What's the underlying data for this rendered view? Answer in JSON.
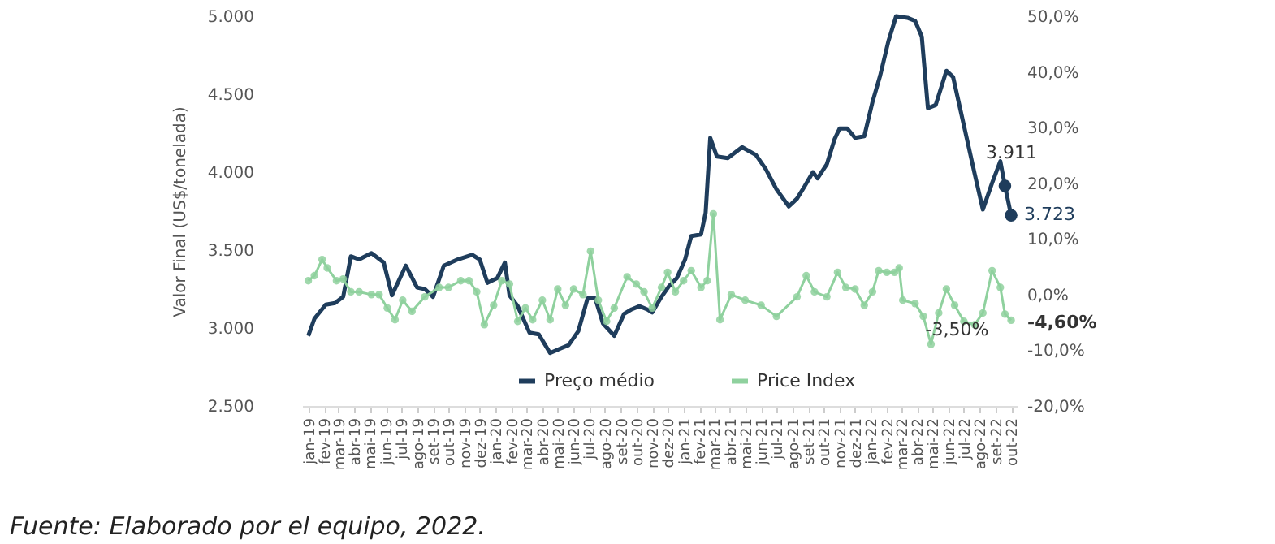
{
  "chart_data": {
    "type": "line",
    "ylabel": "Valor Final (US$/tonelada)",
    "xlim": [
      "2018-12-20",
      "2022-10-12"
    ],
    "xticks": [
      {
        "value": "2019-01",
        "label": "jan-19"
      },
      {
        "value": "2019-02",
        "label": "fev-19"
      },
      {
        "value": "2019-03",
        "label": "mar-19"
      },
      {
        "value": "2019-04",
        "label": "abr-19"
      },
      {
        "value": "2019-05",
        "label": "mai-19"
      },
      {
        "value": "2019-06",
        "label": "jun-19"
      },
      {
        "value": "2019-07",
        "label": "jul-19"
      },
      {
        "value": "2019-08",
        "label": "ago-19"
      },
      {
        "value": "2019-09",
        "label": "set-19"
      },
      {
        "value": "2019-10",
        "label": "out-19"
      },
      {
        "value": "2019-11",
        "label": "nov-19"
      },
      {
        "value": "2019-12",
        "label": "dez-19"
      },
      {
        "value": "2020-01",
        "label": "jan-20"
      },
      {
        "value": "2020-02",
        "label": "fev-20"
      },
      {
        "value": "2020-03",
        "label": "mar-20"
      },
      {
        "value": "2020-04",
        "label": "abr-20"
      },
      {
        "value": "2020-05",
        "label": "mai-20"
      },
      {
        "value": "2020-06",
        "label": "jun-20"
      },
      {
        "value": "2020-07",
        "label": "jul-20"
      },
      {
        "value": "2020-08",
        "label": "ago-20"
      },
      {
        "value": "2020-09",
        "label": "set-20"
      },
      {
        "value": "2020-10",
        "label": "out-20"
      },
      {
        "value": "2020-11",
        "label": "nov-20"
      },
      {
        "value": "2020-12",
        "label": "dez-20"
      },
      {
        "value": "2021-01",
        "label": "jan-21"
      },
      {
        "value": "2021-02",
        "label": "fev-21"
      },
      {
        "value": "2021-03",
        "label": "mar-21"
      },
      {
        "value": "2021-04",
        "label": "abr-21"
      },
      {
        "value": "2021-05",
        "label": "mai-21"
      },
      {
        "value": "2021-06",
        "label": "jun-21"
      },
      {
        "value": "2021-07",
        "label": "jul-21"
      },
      {
        "value": "2021-08",
        "label": "ago-21"
      },
      {
        "value": "2021-09",
        "label": "set-21"
      },
      {
        "value": "2021-10",
        "label": "out-21"
      },
      {
        "value": "2021-11",
        "label": "nov-21"
      },
      {
        "value": "2021-12",
        "label": "dez-21"
      },
      {
        "value": "2022-01",
        "label": "jan-22"
      },
      {
        "value": "2022-02",
        "label": "fev-22"
      },
      {
        "value": "2022-03",
        "label": "mar-22"
      },
      {
        "value": "2022-04",
        "label": "abr-22"
      },
      {
        "value": "2022-05",
        "label": "mai-22"
      },
      {
        "value": "2022-06",
        "label": "jun-22"
      },
      {
        "value": "2022-07",
        "label": "jul-22"
      },
      {
        "value": "2022-08",
        "label": "ago-22"
      },
      {
        "value": "2022-09",
        "label": "set-22"
      },
      {
        "value": "2022-10",
        "label": "out-22"
      }
    ],
    "ylim": [
      2500,
      5000
    ],
    "yticks": [
      {
        "value": 2500,
        "label": "2.500"
      },
      {
        "value": 3000,
        "label": "3.000"
      },
      {
        "value": 3500,
        "label": "3.500"
      },
      {
        "value": 4000,
        "label": "4.000"
      },
      {
        "value": 4500,
        "label": "4.500"
      },
      {
        "value": 5000,
        "label": "5.000"
      }
    ],
    "y2lim": [
      -20,
      50
    ],
    "y2ticks": [
      {
        "value": -20,
        "label": "-20,0%"
      },
      {
        "value": -10,
        "label": "-10,0%"
      },
      {
        "value": 0,
        "label": "0,0%"
      },
      {
        "value": 10,
        "label": "10,0%"
      },
      {
        "value": 20,
        "label": "20,0%"
      },
      {
        "value": 30,
        "label": "30,0%"
      },
      {
        "value": 40,
        "label": "40,0%"
      },
      {
        "value": 50,
        "label": "50,0%"
      }
    ],
    "grid": false,
    "legend": "bottom",
    "line_style": "solid",
    "series": [
      {
        "name": "Preço médio",
        "color": "#1f3d5c",
        "marker": "none",
        "x": [
          "2019-01-01",
          "2019-01-13",
          "2019-02-04",
          "2019-02-22",
          "2019-03-10",
          "2019-03-25",
          "2019-04-10",
          "2019-05-04",
          "2019-05-28",
          "2019-06-13",
          "2019-07-10",
          "2019-08-01",
          "2019-08-16",
          "2019-09-01",
          "2019-09-22",
          "2019-10-19",
          "2019-11-16",
          "2019-12-01",
          "2019-12-16",
          "2020-01-04",
          "2020-01-19",
          "2020-01-28",
          "2020-02-13",
          "2020-03-07",
          "2020-03-25",
          "2020-04-16",
          "2020-05-07",
          "2020-05-22",
          "2020-06-10",
          "2020-06-28",
          "2020-07-13",
          "2020-07-28",
          "2020-08-19",
          "2020-09-07",
          "2020-09-22",
          "2020-10-07",
          "2020-10-22",
          "2020-11-01",
          "2020-11-19",
          "2020-12-04",
          "2020-12-19",
          "2021-01-04",
          "2021-01-16",
          "2021-02-04",
          "2021-02-13",
          "2021-02-22",
          "2021-03-07",
          "2021-03-28",
          "2021-04-25",
          "2021-05-22",
          "2021-06-10",
          "2021-07-01",
          "2021-07-25",
          "2021-08-10",
          "2021-08-25",
          "2021-09-10",
          "2021-09-19",
          "2021-10-07",
          "2021-10-22",
          "2021-11-01",
          "2021-11-16",
          "2021-12-01",
          "2021-12-19",
          "2022-01-04",
          "2022-01-19",
          "2022-02-04",
          "2022-02-19",
          "2022-03-13",
          "2022-03-28",
          "2022-04-10",
          "2022-04-22",
          "2022-05-07",
          "2022-05-28",
          "2022-06-10",
          "2022-07-01",
          "2022-07-22",
          "2022-08-07",
          "2022-08-25",
          "2022-09-10",
          "2022-09-19",
          "2022-10-01"
        ],
        "values": [
          2950,
          3060,
          3150,
          3160,
          3200,
          3460,
          3440,
          3480,
          3420,
          3210,
          3400,
          3260,
          3250,
          3200,
          3400,
          3440,
          3470,
          3440,
          3290,
          3320,
          3420,
          3210,
          3140,
          2970,
          2960,
          2840,
          2870,
          2890,
          2980,
          3190,
          3190,
          3030,
          2950,
          3090,
          3120,
          3140,
          3120,
          3100,
          3200,
          3270,
          3320,
          3440,
          3590,
          3600,
          3740,
          4220,
          4100,
          4090,
          4160,
          4110,
          4020,
          3890,
          3780,
          3830,
          3910,
          4000,
          3960,
          4050,
          4210,
          4280,
          4280,
          4220,
          4230,
          4450,
          4620,
          4840,
          5000,
          4990,
          4970,
          4870,
          4410,
          4430,
          4650,
          4610,
          4300,
          3990,
          3760,
          3930,
          4070,
          3911,
          3723
        ],
        "value_labels": [
          null,
          null,
          null,
          null,
          null,
          null,
          null,
          null,
          null,
          null,
          null,
          null,
          null,
          null,
          null,
          null,
          null,
          null,
          null,
          null,
          null,
          null,
          null,
          null,
          null,
          null,
          null,
          null,
          null,
          null,
          null,
          null,
          null,
          null,
          null,
          null,
          null,
          null,
          null,
          null,
          null,
          null,
          null,
          null,
          null,
          null,
          null,
          null,
          null,
          null,
          null,
          null,
          null,
          null,
          null,
          null,
          null,
          null,
          null,
          null,
          null,
          null,
          null,
          null,
          null,
          null,
          null,
          null,
          null,
          null,
          null,
          null,
          null,
          null,
          null,
          null,
          null,
          null,
          null,
          "3.911",
          "3.723"
        ]
      },
      {
        "name": "Price Index",
        "color": "#8fd19e",
        "marker": "circle",
        "axis": "y2",
        "x": [
          "2019-01-01",
          "2019-01-13",
          "2019-01-28",
          "2019-02-07",
          "2019-02-25",
          "2019-03-10",
          "2019-03-25",
          "2019-04-10",
          "2019-05-04",
          "2019-05-19",
          "2019-06-04",
          "2019-06-19",
          "2019-07-04",
          "2019-07-22",
          "2019-08-16",
          "2019-09-13",
          "2019-10-01",
          "2019-10-25",
          "2019-11-10",
          "2019-11-25",
          "2019-12-10",
          "2019-12-28",
          "2020-01-13",
          "2020-01-28",
          "2020-02-13",
          "2020-02-28",
          "2020-03-13",
          "2020-04-01",
          "2020-04-16",
          "2020-05-01",
          "2020-05-16",
          "2020-06-01",
          "2020-06-19",
          "2020-07-04",
          "2020-07-19",
          "2020-08-04",
          "2020-08-19",
          "2020-09-13",
          "2020-10-01",
          "2020-10-16",
          "2020-11-01",
          "2020-11-19",
          "2020-12-01",
          "2020-12-16",
          "2021-01-01",
          "2021-01-16",
          "2021-02-04",
          "2021-02-16",
          "2021-02-28",
          "2021-03-13",
          "2021-04-04",
          "2021-05-01",
          "2021-06-01",
          "2021-07-01",
          "2021-08-10",
          "2021-08-28",
          "2021-09-13",
          "2021-10-07",
          "2021-10-28",
          "2021-11-13",
          "2021-12-01",
          "2021-12-19",
          "2022-01-04",
          "2022-01-16",
          "2022-02-01",
          "2022-02-16",
          "2022-02-25",
          "2022-03-04",
          "2022-03-28",
          "2022-04-13",
          "2022-04-28",
          "2022-05-13",
          "2022-05-28",
          "2022-06-13",
          "2022-07-01",
          "2022-07-22",
          "2022-08-07",
          "2022-08-25",
          "2022-09-10",
          "2022-09-19",
          "2022-10-01"
        ],
        "values": [
          2.5,
          3.4,
          6.3,
          4.8,
          2.5,
          2.8,
          0.5,
          0.5,
          0,
          0,
          -2.4,
          -4.5,
          -1,
          -3,
          -0.4,
          1.3,
          1.3,
          2.5,
          2.5,
          0.5,
          -5.4,
          -1.9,
          2.5,
          1.9,
          -4.8,
          -2.4,
          -4.5,
          -1,
          -4.5,
          1,
          -1.9,
          1,
          0,
          7.8,
          -1,
          -4.8,
          -2.4,
          3.2,
          1.9,
          0.5,
          -2.4,
          1.3,
          4.0,
          0.5,
          2.5,
          4.3,
          1.3,
          2.5,
          14.5,
          -4.5,
          0,
          -1,
          -1.9,
          -3.9,
          -0.4,
          3.4,
          0.5,
          -0.4,
          4.0,
          1.3,
          1,
          -1.9,
          0.5,
          4.3,
          4.0,
          4.0,
          4.8,
          -1,
          -1.6,
          -3.9,
          -8.9,
          -3.3,
          1,
          -1.9,
          -4.8,
          -5.4,
          -3.3,
          4.3,
          1.3,
          -3.5,
          -4.6
        ],
        "value_labels": [
          null,
          null,
          null,
          null,
          null,
          null,
          null,
          null,
          null,
          null,
          null,
          null,
          null,
          null,
          null,
          null,
          null,
          null,
          null,
          null,
          null,
          null,
          null,
          null,
          null,
          null,
          null,
          null,
          null,
          null,
          null,
          null,
          null,
          null,
          null,
          null,
          null,
          null,
          null,
          null,
          null,
          null,
          null,
          null,
          null,
          null,
          null,
          null,
          null,
          null,
          null,
          null,
          null,
          null,
          null,
          null,
          null,
          null,
          null,
          null,
          null,
          null,
          null,
          null,
          null,
          null,
          null,
          null,
          null,
          null,
          null,
          null,
          null,
          null,
          null,
          null,
          null,
          null,
          null,
          "-3,50%",
          "-4,60%"
        ]
      }
    ],
    "annotations": [
      "Fuente: Elaborado por el equipo, 2022."
    ]
  }
}
